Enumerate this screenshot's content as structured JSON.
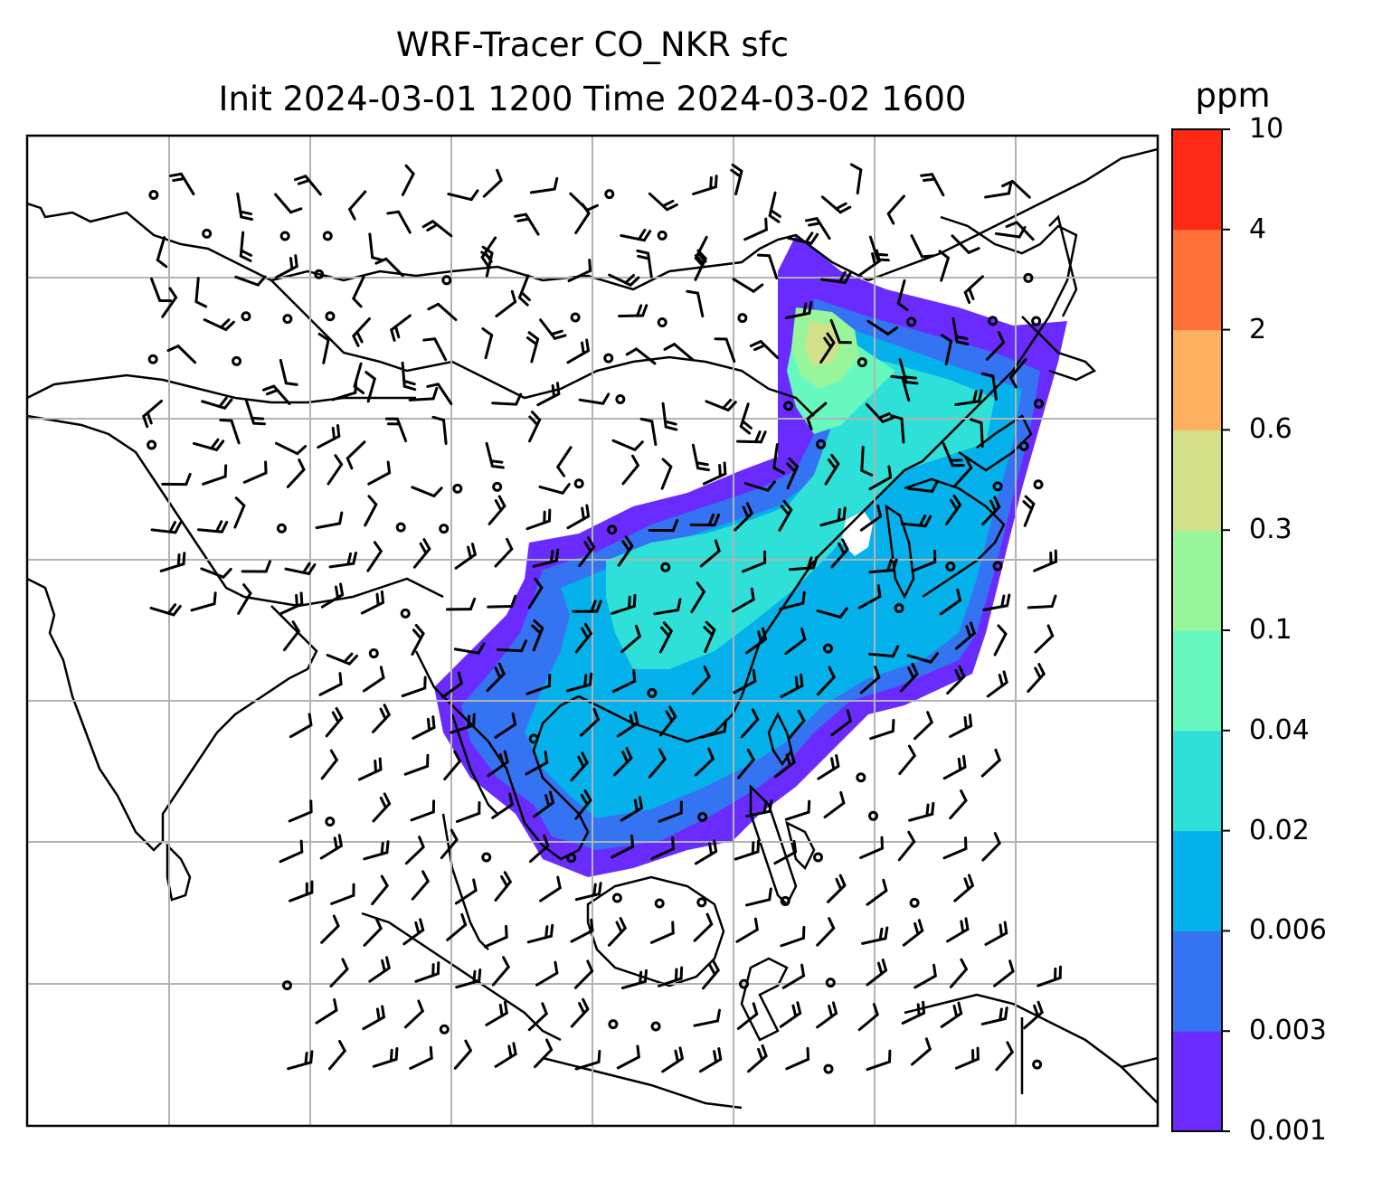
{
  "title": {
    "line1": "WRF-Tracer CO_NKR sfc",
    "line2": "Init 2024-03-01 1200 Time 2024-03-02 1600"
  },
  "colorbar": {
    "unit": "ppm",
    "levels": [
      "0.001",
      "0.003",
      "0.006",
      "0.02",
      "0.04",
      "0.1",
      "0.3",
      "0.6",
      "2",
      "4",
      "10"
    ],
    "colors": [
      "#6a2bff",
      "#3473f2",
      "#04b1ea",
      "#2ee0d8",
      "#66f8bf",
      "#99f59a",
      "#d3e089",
      "#fdb05f",
      "#ff713b",
      "#ff2a16"
    ]
  },
  "map": {
    "background": "#ffffff",
    "coastline_color": "#000000",
    "gridline_color": "#b3b3b3",
    "barb_color": "#000000"
  }
}
